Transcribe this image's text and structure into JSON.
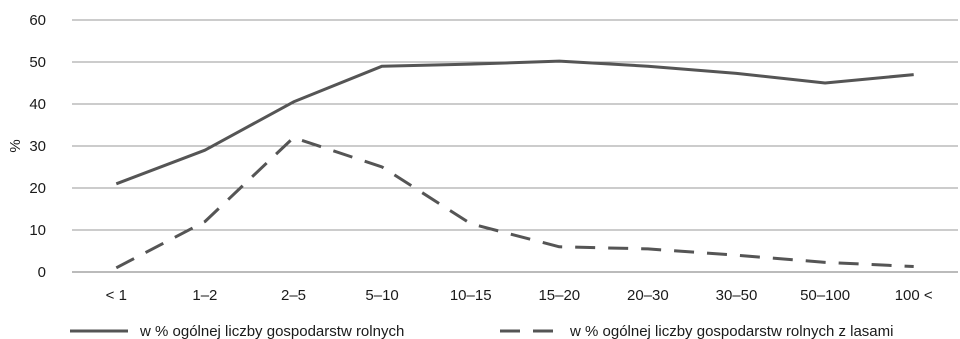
{
  "chart_data": {
    "type": "line",
    "title": "",
    "xlabel": "",
    "ylabel": "%",
    "ylim": [
      0,
      60
    ],
    "yticks": [
      0,
      10,
      20,
      30,
      40,
      50,
      60
    ],
    "grid": "horizontal",
    "legend_position": "bottom",
    "categories": [
      "< 1",
      "1–2",
      "2–5",
      "5–10",
      "10–15",
      "15–20",
      "20–30",
      "30–50",
      "50–100",
      "100 <"
    ],
    "series": [
      {
        "name": "w % ogólnej liczby gospodarstw rolnych",
        "style": "solid",
        "color": "#555555",
        "values": [
          21,
          29,
          40.5,
          49,
          49.5,
          50.2,
          49,
          47.3,
          45,
          47
        ]
      },
      {
        "name": "w % ogólnej liczby gospodarstw rolnych z lasami",
        "style": "dashed",
        "color": "#555555",
        "values": [
          1,
          12,
          32,
          25,
          11.5,
          6,
          5.5,
          4,
          2.3,
          1.3
        ]
      }
    ]
  }
}
